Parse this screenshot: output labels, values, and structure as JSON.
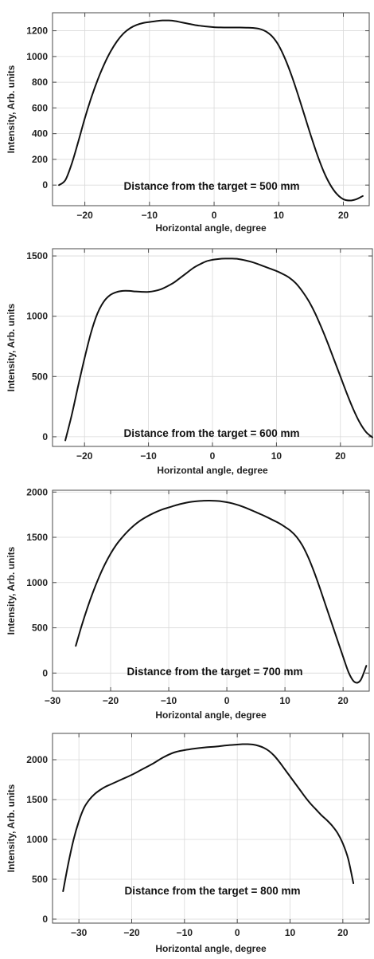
{
  "chart_data": [
    {
      "type": "line",
      "xlabel": "Horizontal angle, degree",
      "ylabel": "Intensity, Arb. units",
      "annotation": "Distance from the target = 500 mm",
      "xlim": [
        -25,
        24
      ],
      "ylim": [
        -160,
        1340
      ],
      "xticks": [
        -20,
        -10,
        0,
        10,
        20
      ],
      "xtick_labels": [
        "−20",
        "−10",
        "0",
        "10",
        "20"
      ],
      "yticks": [
        0,
        200,
        400,
        600,
        800,
        1000,
        1200
      ],
      "ytick_labels": [
        "0",
        "200",
        "400",
        "600",
        "800",
        "1000",
        "1200"
      ],
      "grid": true,
      "series": [
        {
          "x": [
            -24,
            -23,
            -22,
            -21,
            -20,
            -19,
            -18,
            -17,
            -16,
            -15,
            -14,
            -13,
            -12,
            -11,
            -10,
            -9,
            -8,
            -7,
            -6,
            -5,
            -4,
            -3,
            -2,
            -1,
            0,
            1,
            2,
            3,
            4,
            5,
            6,
            7,
            8,
            9,
            10,
            11,
            12,
            13,
            14,
            15,
            16,
            17,
            18,
            19,
            20,
            21,
            22,
            23
          ],
          "y": [
            0,
            40,
            170,
            340,
            520,
            680,
            820,
            940,
            1040,
            1120,
            1180,
            1220,
            1245,
            1260,
            1268,
            1275,
            1280,
            1280,
            1275,
            1265,
            1255,
            1245,
            1238,
            1232,
            1228,
            1226,
            1225,
            1225,
            1225,
            1224,
            1222,
            1215,
            1195,
            1155,
            1085,
            980,
            850,
            700,
            540,
            380,
            230,
            100,
            0,
            -70,
            -110,
            -120,
            -110,
            -85
          ]
        }
      ]
    },
    {
      "type": "line",
      "xlabel": "Horizontal angle, degree",
      "ylabel": "Intensity, Arb. units",
      "annotation": "Distance from the target = 600 mm",
      "xlim": [
        -25,
        25
      ],
      "ylim": [
        -80,
        1560
      ],
      "xticks": [
        -20,
        -10,
        0,
        10,
        20
      ],
      "xtick_labels": [
        "−20",
        "−10",
        "0",
        "10",
        "20"
      ],
      "yticks": [
        0,
        500,
        1000,
        1500
      ],
      "ytick_labels": [
        "0",
        "500",
        "1000",
        "1500"
      ],
      "grid": true,
      "series": [
        {
          "x": [
            -23,
            -22,
            -21,
            -20,
            -19,
            -18,
            -17,
            -16,
            -15,
            -14,
            -13,
            -12,
            -11,
            -10,
            -9,
            -8,
            -7,
            -6,
            -5,
            -4,
            -3,
            -2,
            -1,
            0,
            1,
            2,
            3,
            4,
            5,
            6,
            7,
            8,
            9,
            10,
            11,
            12,
            13,
            14,
            15,
            16,
            17,
            18,
            19,
            20,
            21,
            22,
            23,
            24,
            25
          ],
          "y": [
            -30,
            180,
            420,
            650,
            860,
            1020,
            1120,
            1175,
            1200,
            1210,
            1210,
            1205,
            1202,
            1202,
            1210,
            1225,
            1250,
            1280,
            1320,
            1360,
            1400,
            1430,
            1455,
            1468,
            1475,
            1478,
            1478,
            1475,
            1465,
            1452,
            1435,
            1415,
            1395,
            1375,
            1350,
            1320,
            1275,
            1210,
            1130,
            1030,
            910,
            780,
            640,
            500,
            360,
            230,
            120,
            40,
            -5
          ]
        }
      ]
    },
    {
      "type": "line",
      "xlabel": "Horizontal angle, degree",
      "ylabel": "Intensity, Arb. units",
      "annotation": "Distance from the target = 700 mm",
      "xlim": [
        -30,
        24.5
      ],
      "ylim": [
        -200,
        2020
      ],
      "xticks": [
        -30,
        -20,
        -10,
        0,
        10,
        20
      ],
      "xtick_labels": [
        "−30",
        "−20",
        "−10",
        "0",
        "10",
        "20"
      ],
      "yticks": [
        0,
        500,
        1000,
        1500,
        2000
      ],
      "ytick_labels": [
        "0",
        "500",
        "1000",
        "1500",
        "2000"
      ],
      "grid": true,
      "series": [
        {
          "x": [
            -26,
            -25,
            -24,
            -23,
            -22,
            -21,
            -20,
            -19,
            -18,
            -17,
            -16,
            -15,
            -14,
            -13,
            -12,
            -11,
            -10,
            -9,
            -8,
            -7,
            -6,
            -5,
            -4,
            -3,
            -2,
            -1,
            0,
            1,
            2,
            3,
            4,
            5,
            6,
            7,
            8,
            9,
            10,
            11,
            12,
            13,
            14,
            15,
            16,
            17,
            18,
            19,
            20,
            21,
            22,
            23,
            24
          ],
          "y": [
            300,
            520,
            720,
            900,
            1060,
            1200,
            1320,
            1420,
            1500,
            1570,
            1630,
            1680,
            1720,
            1755,
            1785,
            1810,
            1830,
            1850,
            1868,
            1882,
            1893,
            1900,
            1904,
            1905,
            1903,
            1898,
            1888,
            1874,
            1855,
            1832,
            1806,
            1778,
            1750,
            1720,
            1688,
            1655,
            1615,
            1570,
            1505,
            1410,
            1280,
            1120,
            940,
            750,
            560,
            370,
            180,
            0,
            -100,
            -80,
            80
          ]
        }
      ]
    },
    {
      "type": "line",
      "xlabel": "Horizontal angle, degree",
      "ylabel": "Intensity, Arb. units",
      "annotation": "Distance from the target = 800 mm",
      "xlim": [
        -35,
        25
      ],
      "ylim": [
        -50,
        2330
      ],
      "xticks": [
        -30,
        -20,
        -10,
        0,
        10,
        20
      ],
      "xtick_labels": [
        "−30",
        "−20",
        "−10",
        "0",
        "10",
        "20"
      ],
      "yticks": [
        0,
        500,
        1000,
        1500,
        2000
      ],
      "ytick_labels": [
        "0",
        "500",
        "1000",
        "1500",
        "2000"
      ],
      "grid": true,
      "series": [
        {
          "x": [
            -33,
            -32,
            -31,
            -30,
            -29,
            -28,
            -27,
            -26,
            -25,
            -24,
            -22,
            -20,
            -18,
            -16,
            -14,
            -12,
            -10,
            -8,
            -6,
            -4,
            -2,
            0,
            1,
            2,
            3,
            4,
            5,
            6,
            7,
            8,
            9,
            10,
            11,
            12,
            13,
            14,
            15,
            16,
            17,
            18,
            19,
            20,
            21,
            22
          ],
          "y": [
            350,
            700,
            1000,
            1230,
            1400,
            1500,
            1570,
            1620,
            1660,
            1690,
            1750,
            1810,
            1880,
            1950,
            2030,
            2090,
            2120,
            2140,
            2155,
            2165,
            2180,
            2190,
            2195,
            2195,
            2190,
            2175,
            2150,
            2110,
            2050,
            1970,
            1880,
            1790,
            1700,
            1610,
            1520,
            1440,
            1370,
            1300,
            1240,
            1170,
            1080,
            950,
            760,
            450
          ]
        }
      ]
    }
  ]
}
